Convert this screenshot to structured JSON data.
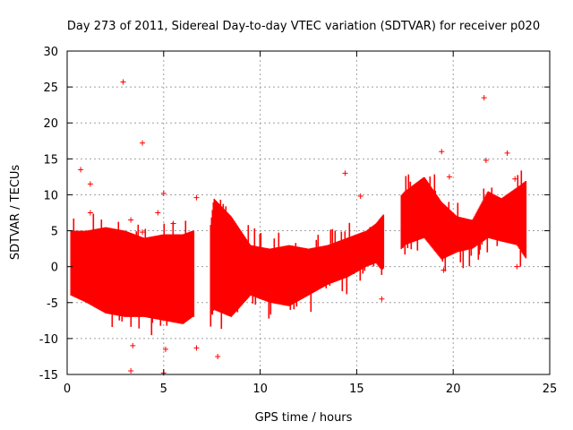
{
  "chart_data": {
    "type": "scatter",
    "title": "Day 273 of 2011, Sidereal Day-to-day VTEC variation (SDTVAR) for receiver p020",
    "xlabel": "GPS time / hours",
    "ylabel": "SDTVAR / TECUs",
    "xlim": [
      0,
      25
    ],
    "ylim": [
      -15,
      30
    ],
    "xticks": [
      "0",
      "5",
      "10",
      "15",
      "20",
      "25"
    ],
    "yticks": [
      "-15",
      "-10",
      "-5",
      "0",
      "5",
      "10",
      "15",
      "20",
      "25",
      "30"
    ],
    "grid": true,
    "marker": "+",
    "color": "#ff0000",
    "series": [
      {
        "name": "SDTVAR",
        "envelope": [
          {
            "x": 0.2,
            "low": -4.0,
            "high": 5.0
          },
          {
            "x": 1.0,
            "low": -5.0,
            "high": 5.0
          },
          {
            "x": 2.0,
            "low": -6.5,
            "high": 5.5
          },
          {
            "x": 3.0,
            "low": -7.0,
            "high": 5.0
          },
          {
            "x": 4.0,
            "low": -7.0,
            "high": 4.0
          },
          {
            "x": 5.0,
            "low": -7.5,
            "high": 4.5
          },
          {
            "x": 6.0,
            "low": -8.0,
            "high": 4.5
          },
          {
            "x": 6.5,
            "low": -7.0,
            "high": 5.0
          },
          {
            "x": 7.4,
            "low": -7.0,
            "high": 5.0
          },
          {
            "x": 7.6,
            "low": -6.0,
            "high": 9.5
          },
          {
            "x": 8.5,
            "low": -7.0,
            "high": 7.0
          },
          {
            "x": 9.5,
            "low": -4.0,
            "high": 3.0
          },
          {
            "x": 10.5,
            "low": -5.0,
            "high": 2.5
          },
          {
            "x": 11.5,
            "low": -5.5,
            "high": 3.0
          },
          {
            "x": 12.5,
            "low": -4.0,
            "high": 2.5
          },
          {
            "x": 13.5,
            "low": -2.5,
            "high": 3.0
          },
          {
            "x": 14.5,
            "low": -1.5,
            "high": 4.0
          },
          {
            "x": 15.5,
            "low": 0.0,
            "high": 5.0
          },
          {
            "x": 16.0,
            "low": 0.5,
            "high": 6.0
          },
          {
            "x": 16.3,
            "low": -0.5,
            "high": 7.0
          },
          {
            "x": 17.5,
            "low": 3.0,
            "high": 10.5
          },
          {
            "x": 18.5,
            "low": 4.0,
            "high": 12.5
          },
          {
            "x": 19.4,
            "low": 1.0,
            "high": 9.0
          },
          {
            "x": 20.2,
            "low": 2.0,
            "high": 7.0
          },
          {
            "x": 21.0,
            "low": 2.5,
            "high": 6.5
          },
          {
            "x": 21.8,
            "low": 4.0,
            "high": 10.5
          },
          {
            "x": 22.5,
            "low": 3.5,
            "high": 9.5
          },
          {
            "x": 23.3,
            "low": 3.0,
            "high": 11.0
          },
          {
            "x": 23.8,
            "low": 1.0,
            "high": 12.0
          }
        ],
        "gaps": [
          [
            6.6,
            7.4
          ],
          [
            16.4,
            17.3
          ]
        ],
        "outliers": [
          {
            "x": 0.7,
            "y": 13.5
          },
          {
            "x": 1.2,
            "y": 11.5
          },
          {
            "x": 1.2,
            "y": 7.5
          },
          {
            "x": 2.9,
            "y": 25.7
          },
          {
            "x": 3.3,
            "y": 6.5
          },
          {
            "x": 3.3,
            "y": -14.5
          },
          {
            "x": 3.4,
            "y": -11.0
          },
          {
            "x": 3.9,
            "y": 17.2
          },
          {
            "x": 3.9,
            "y": 4.8
          },
          {
            "x": 4.7,
            "y": 7.5
          },
          {
            "x": 5.0,
            "y": 10.2
          },
          {
            "x": 5.0,
            "y": -14.8
          },
          {
            "x": 5.1,
            "y": -11.5
          },
          {
            "x": 5.5,
            "y": 6.0
          },
          {
            "x": 6.7,
            "y": 9.6
          },
          {
            "x": 6.7,
            "y": -11.3
          },
          {
            "x": 7.8,
            "y": -12.5
          },
          {
            "x": 14.4,
            "y": 13.0
          },
          {
            "x": 15.2,
            "y": 9.8
          },
          {
            "x": 16.3,
            "y": -4.5
          },
          {
            "x": 19.4,
            "y": 16.0
          },
          {
            "x": 19.5,
            "y": -0.5
          },
          {
            "x": 19.8,
            "y": 12.5
          },
          {
            "x": 21.6,
            "y": 23.5
          },
          {
            "x": 21.7,
            "y": 14.8
          },
          {
            "x": 22.8,
            "y": 15.8
          },
          {
            "x": 23.2,
            "y": 12.2
          },
          {
            "x": 23.3,
            "y": 0.0
          }
        ]
      }
    ]
  }
}
